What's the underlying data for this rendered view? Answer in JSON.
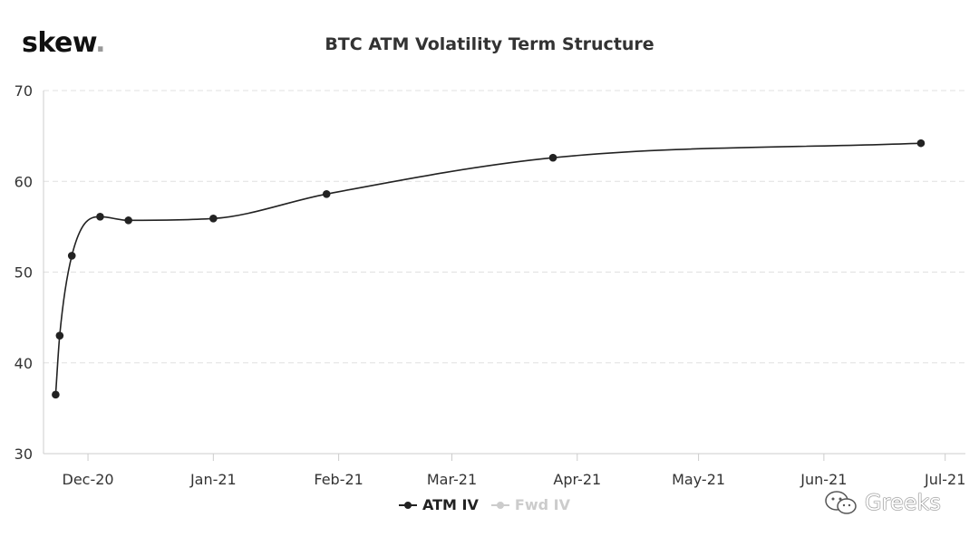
{
  "brand": {
    "name": "skew",
    "dot": "."
  },
  "watermark": {
    "text": "Greeks",
    "icon": "wechat-icon"
  },
  "colors": {
    "atm": "#222222",
    "fwd": "#cccccc",
    "grid": "#e0e0e0",
    "axis": "#cccccc"
  },
  "chart_data": {
    "type": "line",
    "title": "BTC ATM Volatility Term Structure",
    "xlabel": "",
    "ylabel": "",
    "ylim": [
      30,
      70
    ],
    "yticks": [
      30,
      40,
      50,
      60,
      70
    ],
    "xlim": [
      "2020-11-20",
      "2021-07-06"
    ],
    "xticks": [
      {
        "date": "2020-12-01",
        "label": "Dec-20"
      },
      {
        "date": "2021-01-01",
        "label": "Jan-21"
      },
      {
        "date": "2021-02-01",
        "label": "Feb-21"
      },
      {
        "date": "2021-03-01",
        "label": "Mar-21"
      },
      {
        "date": "2021-04-01",
        "label": "Apr-21"
      },
      {
        "date": "2021-05-01",
        "label": "May-21"
      },
      {
        "date": "2021-06-01",
        "label": "Jun-21"
      },
      {
        "date": "2021-07-01",
        "label": "Jul-21"
      }
    ],
    "grid": true,
    "legend": "bottom-center",
    "series": [
      {
        "name": "ATM IV",
        "points": [
          {
            "x": "2020-11-23",
            "y": 36.5
          },
          {
            "x": "2020-11-24",
            "y": 43.0
          },
          {
            "x": "2020-11-27",
            "y": 51.8
          },
          {
            "x": "2020-12-04",
            "y": 56.1
          },
          {
            "x": "2020-12-11",
            "y": 55.7
          },
          {
            "x": "2021-01-01",
            "y": 55.9
          },
          {
            "x": "2021-01-29",
            "y": 58.6
          },
          {
            "x": "2021-03-26",
            "y": 62.6
          },
          {
            "x": "2021-06-25",
            "y": 64.2
          }
        ]
      },
      {
        "name": "Fwd IV",
        "points": []
      }
    ]
  }
}
